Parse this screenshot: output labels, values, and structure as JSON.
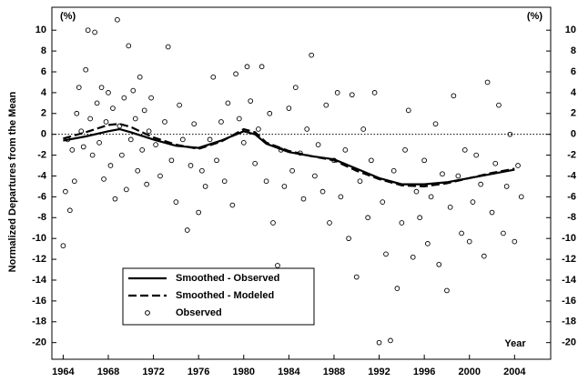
{
  "chart_data": {
    "type": "line",
    "y_label": "Normalized Departures from the Mean",
    "unit_label": "(%)",
    "x_label": "Year",
    "xlim": [
      1963,
      2007.2
    ],
    "xticks": [
      1964,
      1968,
      1972,
      1976,
      1980,
      1984,
      1988,
      1992,
      1996,
      2000,
      2004
    ],
    "ylim": [
      -21.6,
      12.2
    ],
    "yticks": [
      10,
      8,
      6,
      4,
      2,
      0,
      -2,
      -4,
      -6,
      -8,
      -10,
      -12,
      -14,
      -16,
      -18,
      -20
    ],
    "hline": 0,
    "legend": "lower left",
    "series": [
      {
        "name": "Smoothed - Observed",
        "color": "#000000",
        "style": "solid",
        "x": [
          1964,
          1966,
          1968,
          1969,
          1970,
          1972,
          1974,
          1976,
          1978,
          1980,
          1981,
          1982,
          1984,
          1986,
          1988,
          1990,
          1992,
          1994,
          1996,
          1998,
          2000,
          2002,
          2004
        ],
        "values": [
          -0.6,
          -0.2,
          0.3,
          0.5,
          0.2,
          -0.5,
          -1.1,
          -1.3,
          -0.6,
          0.3,
          0,
          -0.9,
          -1.7,
          -2.1,
          -2.4,
          -3.3,
          -4.2,
          -4.8,
          -4.8,
          -4.6,
          -4.2,
          -3.8,
          -3.4
        ]
      },
      {
        "name": "Smoothed - Modeled",
        "color": "#000000",
        "style": "dashed",
        "x": [
          1964,
          1966,
          1968,
          1969,
          1970,
          1972,
          1974,
          1976,
          1978,
          1980,
          1981,
          1982,
          1984,
          1986,
          1988,
          1990,
          1992,
          1994,
          1996,
          1998,
          2000,
          2002,
          2004
        ],
        "values": [
          -0.4,
          0.2,
          0.9,
          1.0,
          0.7,
          -0.3,
          -1.0,
          -1.4,
          -0.7,
          0.5,
          0.2,
          -0.8,
          -1.6,
          -2.1,
          -2.5,
          -3.5,
          -4.3,
          -4.9,
          -5.0,
          -4.7,
          -4.2,
          -3.7,
          -3.3
        ]
      },
      {
        "name": "Observed",
        "color": "#000000",
        "style": "markers",
        "x": [
          1964.0,
          1964.2,
          1964.4,
          1964.6,
          1964.8,
          1965.0,
          1965.2,
          1965.4,
          1965.6,
          1965.8,
          1966.0,
          1966.2,
          1966.4,
          1966.6,
          1966.8,
          1967.0,
          1967.2,
          1967.4,
          1967.6,
          1967.8,
          1968.0,
          1968.2,
          1968.4,
          1968.6,
          1968.8,
          1969.0,
          1969.2,
          1969.4,
          1969.6,
          1969.8,
          1970.0,
          1970.2,
          1970.4,
          1970.6,
          1970.8,
          1971.0,
          1971.2,
          1971.4,
          1971.6,
          1971.8,
          1972.2,
          1972.6,
          1973.0,
          1973.3,
          1973.6,
          1974.0,
          1974.3,
          1974.6,
          1975.0,
          1975.3,
          1975.6,
          1976.0,
          1976.3,
          1976.6,
          1977.0,
          1977.3,
          1977.6,
          1978.0,
          1978.3,
          1978.6,
          1979.0,
          1979.3,
          1979.6,
          1980.0,
          1980.3,
          1980.6,
          1981.0,
          1981.3,
          1981.6,
          1982.0,
          1982.3,
          1982.6,
          1983.0,
          1983.3,
          1983.6,
          1984.0,
          1984.3,
          1984.6,
          1985.0,
          1985.3,
          1985.6,
          1986.0,
          1986.3,
          1986.6,
          1987.0,
          1987.3,
          1987.6,
          1988.0,
          1988.3,
          1988.6,
          1989.0,
          1989.3,
          1989.6,
          1990.0,
          1990.3,
          1990.6,
          1991.0,
          1991.3,
          1991.6,
          1992.0,
          1992.3,
          1992.6,
          1993.0,
          1993.3,
          1993.6,
          1994.0,
          1994.3,
          1994.6,
          1995.0,
          1995.3,
          1995.6,
          1996.0,
          1996.3,
          1996.6,
          1997.0,
          1997.3,
          1997.6,
          1998.0,
          1998.3,
          1998.6,
          1999.0,
          1999.3,
          1999.6,
          2000.0,
          2000.3,
          2000.6,
          2001.0,
          2001.3,
          2001.6,
          2002.0,
          2002.3,
          2002.6,
          2003.0,
          2003.3,
          2003.6,
          2004.0,
          2004.3,
          2004.6
        ],
        "values": [
          -10.7,
          -5.5,
          -0.5,
          -7.3,
          -1.5,
          -4.5,
          2.0,
          4.5,
          0.3,
          -1.2,
          6.2,
          10.0,
          1.5,
          -2.0,
          9.8,
          3.0,
          -0.8,
          4.5,
          -4.3,
          1.2,
          4.0,
          -3.0,
          2.5,
          -6.2,
          11.0,
          0.8,
          -2.0,
          3.5,
          -5.3,
          8.5,
          -0.5,
          4.2,
          1.5,
          -3.5,
          5.5,
          -1.5,
          2.3,
          -4.8,
          0.3,
          3.5,
          -1.0,
          -4.0,
          1.2,
          8.4,
          -2.5,
          -6.5,
          2.8,
          -0.5,
          -9.2,
          -3.0,
          1.0,
          -7.5,
          -3.5,
          -5.0,
          -0.5,
          5.5,
          -2.5,
          1.2,
          -4.5,
          3.0,
          -6.8,
          5.8,
          1.5,
          -0.8,
          6.5,
          3.2,
          -2.8,
          0.5,
          6.5,
          -4.5,
          2.0,
          -8.5,
          -12.6,
          -1.5,
          -5.0,
          2.5,
          -3.5,
          4.5,
          -1.8,
          -6.2,
          0.5,
          7.6,
          -4.0,
          -1.0,
          -5.5,
          2.8,
          -8.5,
          -2.5,
          4.0,
          -6.0,
          -1.5,
          -10.0,
          3.8,
          -13.7,
          -4.5,
          0.5,
          -8.0,
          -2.5,
          4.0,
          -20.0,
          -6.5,
          -11.5,
          -19.8,
          -3.5,
          -14.8,
          -8.5,
          -1.5,
          2.3,
          -11.8,
          -5.5,
          -8.0,
          -2.5,
          -10.5,
          -6.0,
          1.0,
          -12.5,
          -3.8,
          -15.0,
          -7.0,
          3.7,
          -4.0,
          -9.5,
          -1.5,
          -10.3,
          -6.5,
          -2.0,
          -4.8,
          -11.7,
          5.0,
          -7.5,
          -2.8,
          2.8,
          -9.5,
          -5.0,
          0.0,
          -10.3,
          -3.0,
          -6.0
        ]
      }
    ]
  }
}
